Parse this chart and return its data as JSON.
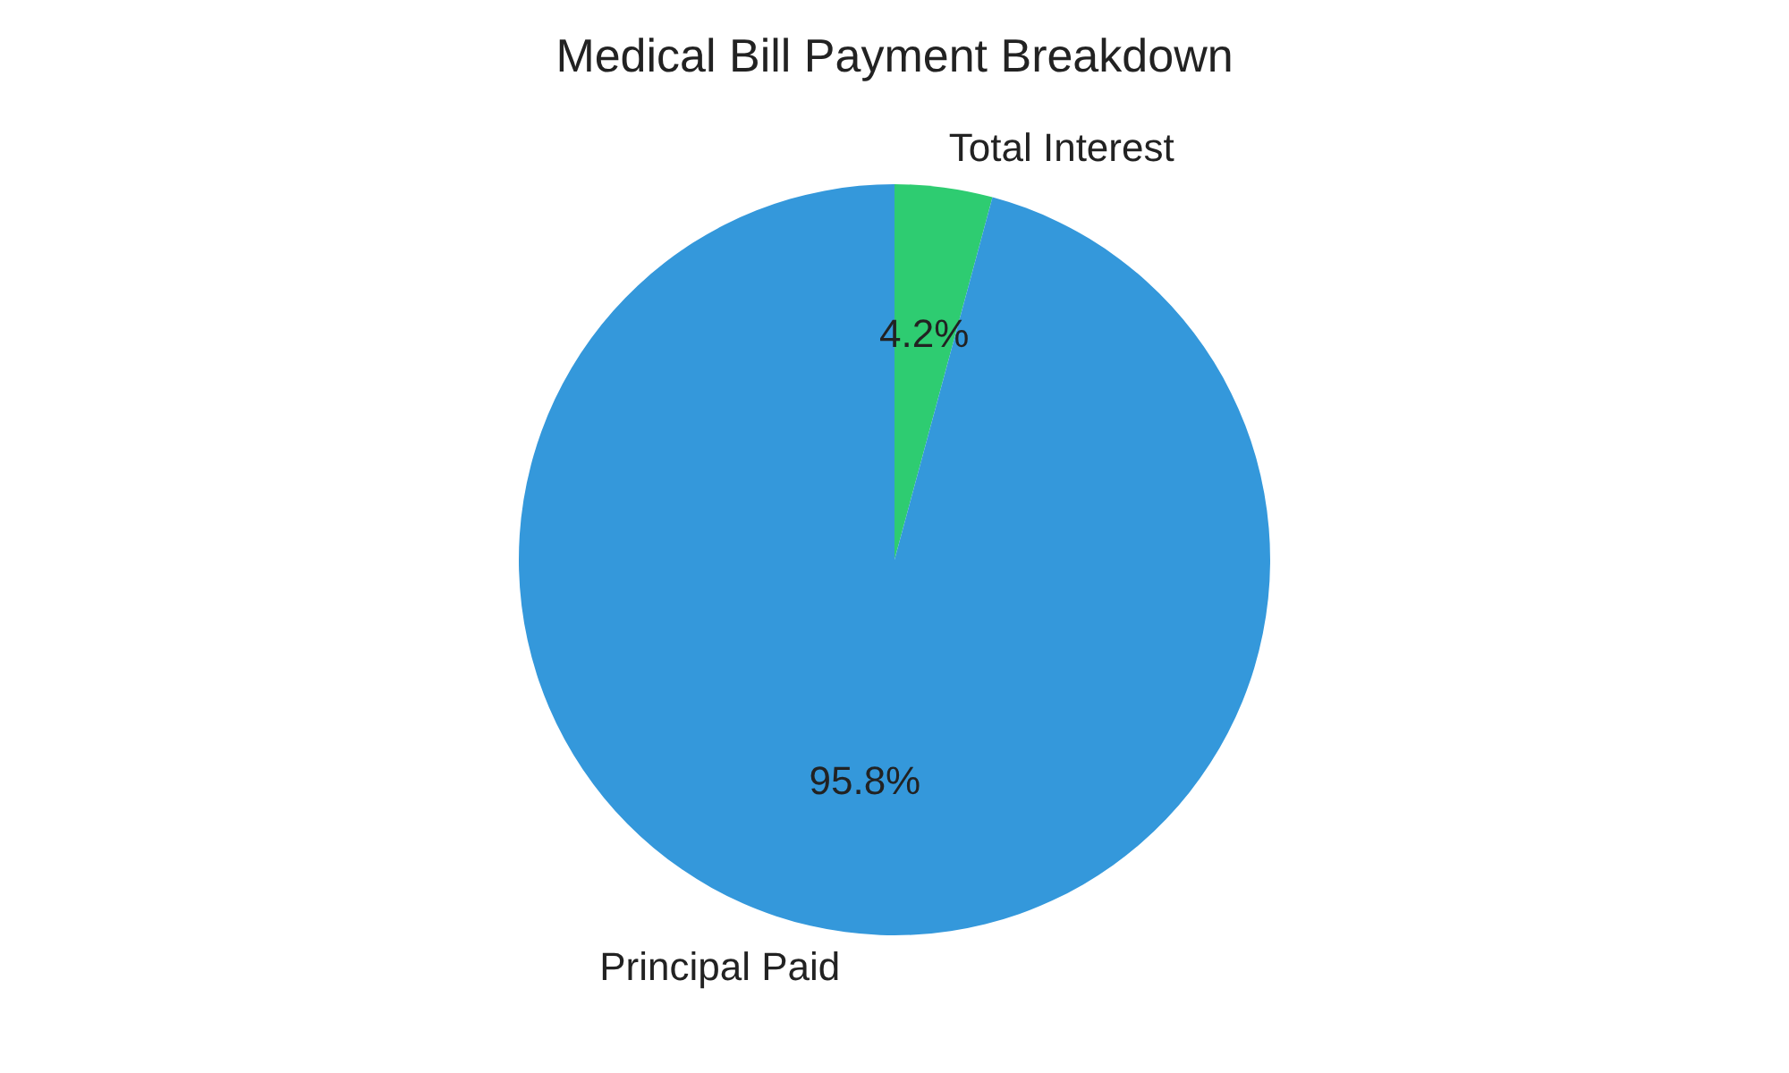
{
  "chart_data": {
    "type": "pie",
    "title": "Medical Bill Payment Breakdown",
    "categories": [
      "Total Interest",
      "Principal Paid"
    ],
    "values": [
      4.2,
      95.8
    ],
    "colors": [
      "#2ecc71",
      "#3498db"
    ],
    "value_labels": [
      "4.2%",
      "95.8%"
    ],
    "legend": false
  }
}
